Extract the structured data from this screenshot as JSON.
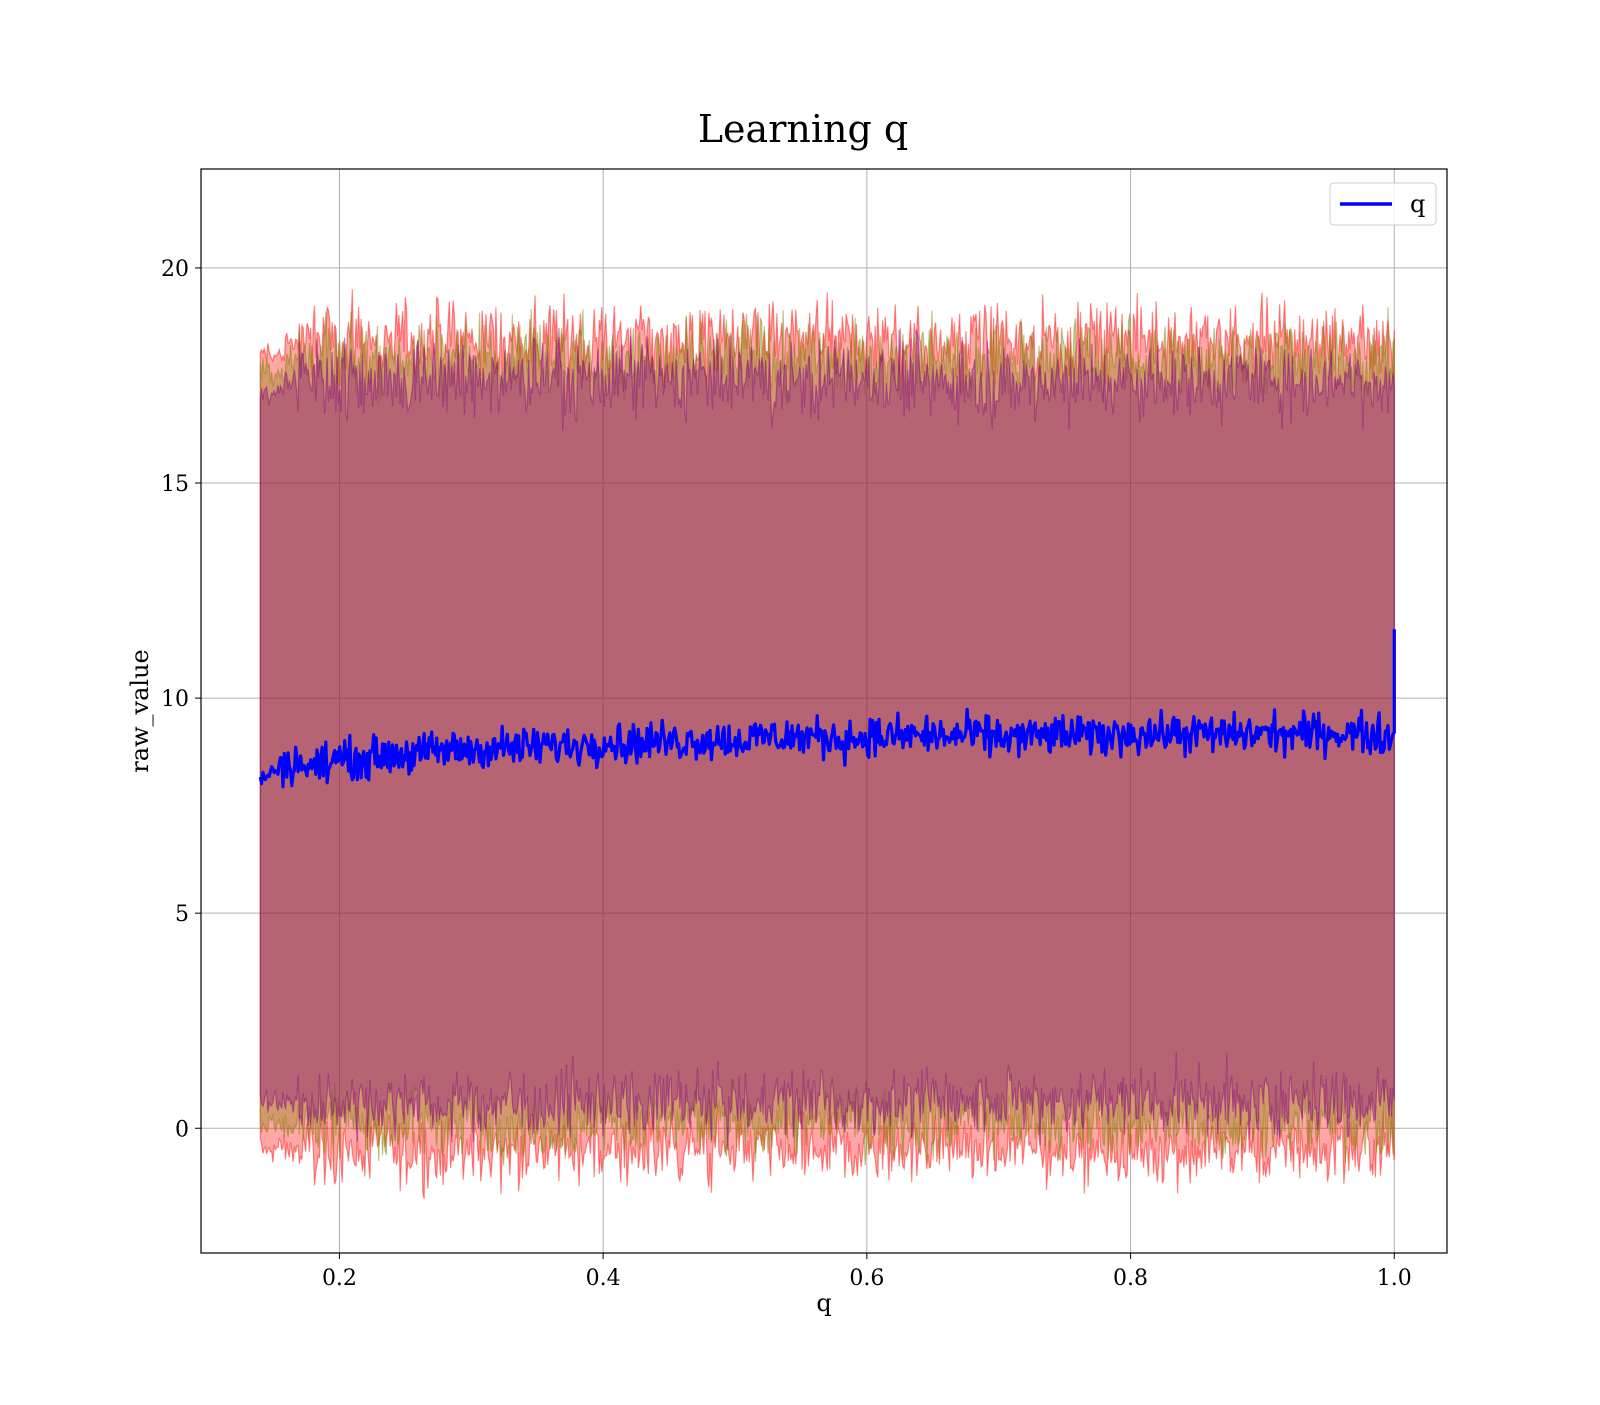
{
  "chart_data": {
    "type": "area",
    "title": "Learning q",
    "xlabel": "q",
    "ylabel": "raw_value",
    "xlim": [
      0.095,
      1.04
    ],
    "ylim": [
      -2.9,
      22.3
    ],
    "xticks": [
      0.2,
      0.4,
      0.6,
      0.8,
      1.0
    ],
    "xtick_labels": [
      "0.2",
      "0.4",
      "0.6",
      "0.8",
      "1.0"
    ],
    "yticks": [
      0,
      5,
      10,
      15,
      20
    ],
    "ytick_labels": [
      "0",
      "5",
      "10",
      "15",
      "20"
    ],
    "grid": true,
    "legend": {
      "position": "top-right",
      "entries": [
        {
          "label": "q",
          "color": "#0000ff"
        }
      ]
    },
    "x_range": [
      0.14,
      1.0
    ],
    "series": [
      {
        "name": "q",
        "kind": "line",
        "color": "#0000ff",
        "x": [
          0.14,
          0.16,
          0.18,
          0.2,
          0.22,
          0.24,
          0.26,
          0.28,
          0.3,
          0.32,
          0.34,
          0.36,
          0.38,
          0.4,
          0.42,
          0.44,
          0.46,
          0.48,
          0.5,
          0.52,
          0.54,
          0.56,
          0.58,
          0.6,
          0.62,
          0.64,
          0.66,
          0.68,
          0.7,
          0.72,
          0.74,
          0.76,
          0.78,
          0.8,
          0.82,
          0.84,
          0.86,
          0.88,
          0.9,
          0.92,
          0.94,
          0.96,
          0.98,
          1.0
        ],
        "y": [
          8.1,
          8.5,
          8.4,
          8.6,
          8.6,
          8.7,
          8.7,
          8.8,
          8.8,
          8.85,
          8.85,
          8.9,
          8.9,
          9.0,
          8.95,
          9.0,
          9.0,
          9.05,
          9.0,
          9.1,
          9.1,
          9.1,
          9.05,
          9.1,
          9.1,
          9.15,
          9.1,
          9.15,
          9.1,
          9.1,
          9.15,
          9.15,
          9.1,
          9.2,
          9.15,
          9.2,
          9.15,
          9.15,
          9.2,
          9.15,
          9.2,
          9.2,
          9.15,
          9.1
        ]
      },
      {
        "kind": "band",
        "color": "#ff0000",
        "opacity": 0.35,
        "upper": 18.3,
        "lower": -0.5
      },
      {
        "kind": "band",
        "color": "#808000",
        "opacity": 0.35,
        "upper": 17.9,
        "lower": 0.1
      },
      {
        "kind": "band",
        "color": "#800080",
        "opacity": 0.35,
        "upper": 17.4,
        "lower": 0.6
      }
    ]
  }
}
